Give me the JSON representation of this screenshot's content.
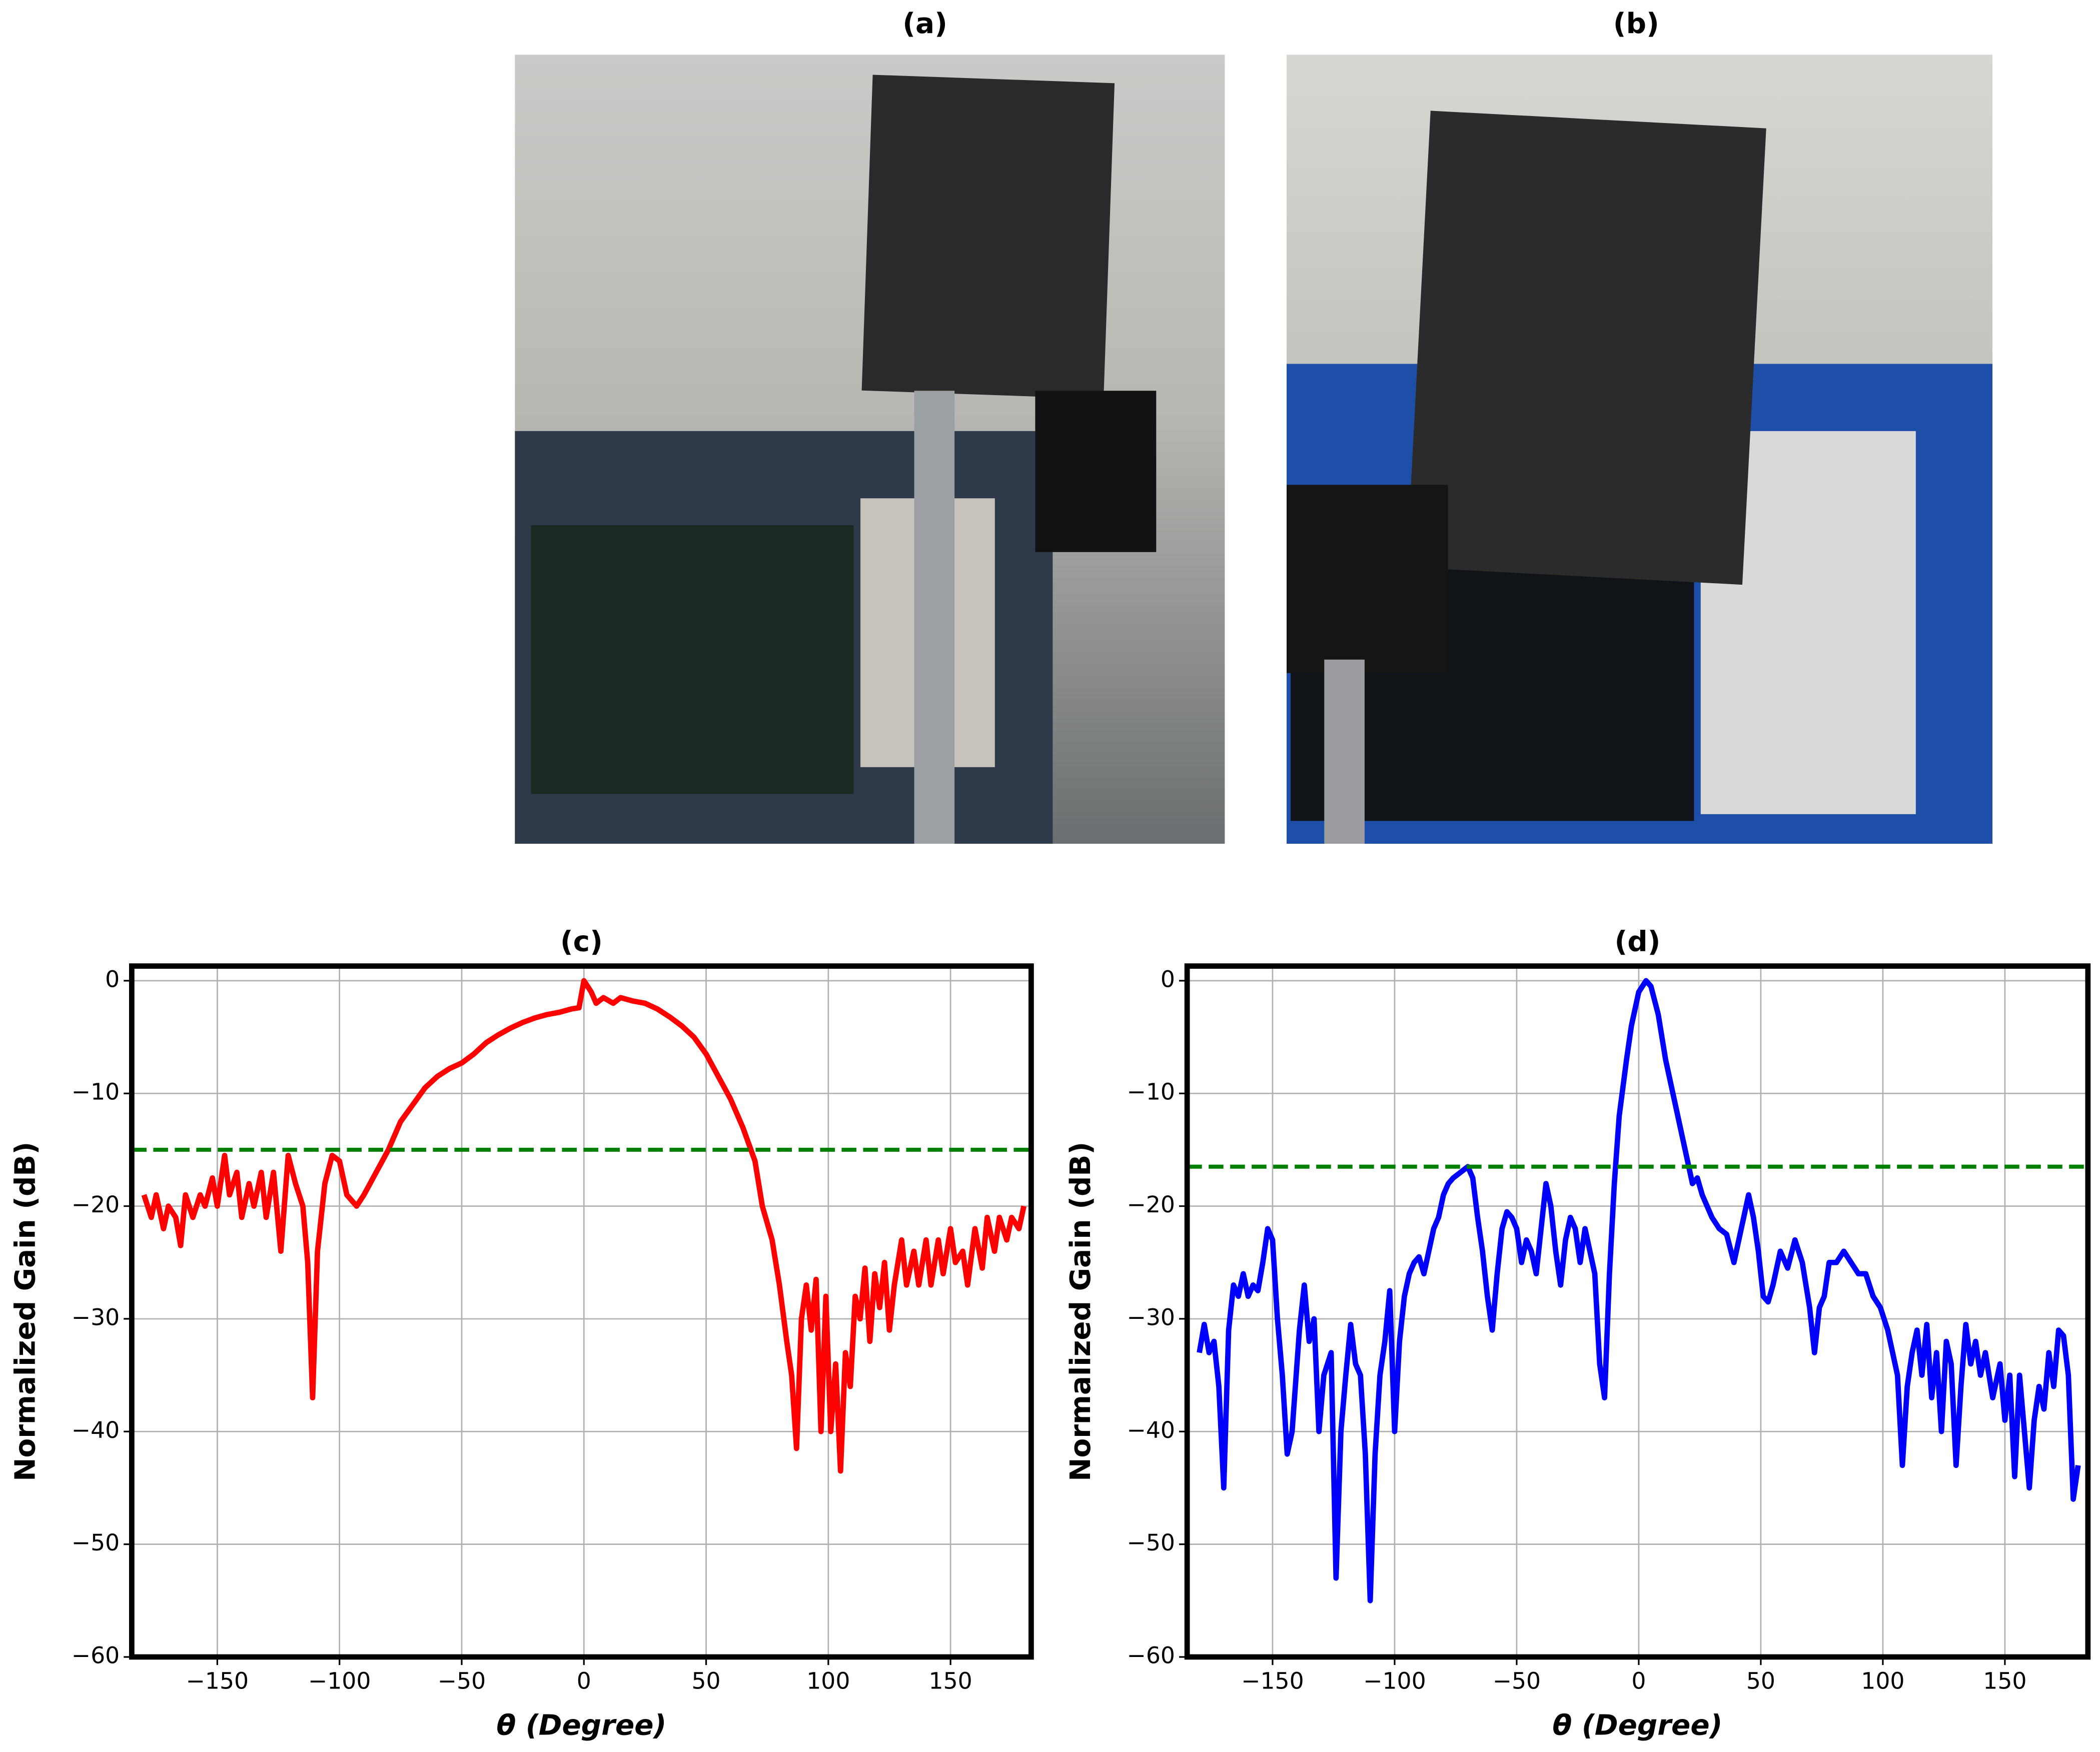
{
  "photos": [
    {
      "label": "(a)"
    },
    {
      "label": "(b)"
    }
  ],
  "chart_data": [
    {
      "type": "line",
      "title": "(c)",
      "xlabel": "θ (Degree)",
      "ylabel": "Normalized Gain (dB)",
      "xlim": [
        -185,
        183
      ],
      "ylim": [
        -60,
        1.3
      ],
      "xticks": [
        {
          "value": -150,
          "label": "−150"
        },
        {
          "value": -100,
          "label": "−100"
        },
        {
          "value": -50,
          "label": "−50"
        },
        0,
        50,
        100,
        150
      ],
      "yticks": [
        {
          "value": -60,
          "label": "−60"
        },
        {
          "value": -50,
          "label": "−50"
        },
        {
          "value": -40,
          "label": "−40"
        },
        {
          "value": -30,
          "label": "−30"
        },
        {
          "value": -20,
          "label": "−20"
        },
        {
          "value": -10,
          "label": "−10"
        },
        0
      ],
      "grid": true,
      "color": "#ff0000",
      "hline": {
        "value": -15,
        "color": "#008000"
      },
      "x": [
        -180,
        -177,
        -175,
        -172,
        -170,
        -167,
        -165,
        -163,
        -160,
        -157,
        -155,
        -152,
        -150,
        -147,
        -145,
        -142,
        -140,
        -137,
        -135,
        -132,
        -130,
        -127,
        -124,
        -121,
        -118,
        -115,
        -113,
        -111,
        -109,
        -106,
        -103,
        -100,
        -97,
        -93,
        -90,
        -85,
        -80,
        -75,
        -70,
        -65,
        -60,
        -55,
        -50,
        -45,
        -40,
        -35,
        -30,
        -25,
        -20,
        -15,
        -10,
        -5,
        -2,
        0,
        3,
        5,
        8,
        12,
        15,
        20,
        25,
        30,
        35,
        40,
        45,
        50,
        55,
        60,
        65,
        70,
        73,
        77,
        80,
        83,
        85,
        87,
        89,
        91,
        93,
        95,
        97,
        99,
        101,
        103,
        105,
        107,
        109,
        111,
        113,
        115,
        117,
        119,
        121,
        123,
        125,
        127,
        130,
        132,
        135,
        137,
        140,
        142,
        145,
        147,
        150,
        152,
        155,
        157,
        160,
        163,
        165,
        168,
        170,
        173,
        175,
        178,
        180
      ],
      "values": [
        -19,
        -21,
        -19,
        -22,
        -20,
        -21,
        -23.5,
        -19,
        -21,
        -19,
        -20,
        -17.5,
        -20,
        -15.5,
        -19,
        -17,
        -21,
        -18,
        -20,
        -17,
        -21,
        -17,
        -24,
        -15.5,
        -18,
        -20,
        -25,
        -37,
        -24,
        -18,
        -15.5,
        -16,
        -19,
        -20,
        -19,
        -17,
        -15,
        -12.5,
        -11,
        -9.5,
        -8.5,
        -7.8,
        -7.3,
        -6.5,
        -5.5,
        -4.8,
        -4.2,
        -3.7,
        -3.3,
        -3,
        -2.8,
        -2.5,
        -2.4,
        0,
        -1,
        -2,
        -1.5,
        -2,
        -1.5,
        -1.8,
        -2,
        -2.5,
        -3.2,
        -4,
        -5,
        -6.5,
        -8.5,
        -10.5,
        -13,
        -16,
        -20,
        -23,
        -27,
        -32,
        -35,
        -41.5,
        -30,
        -27,
        -31,
        -26.5,
        -40,
        -28,
        -40,
        -34,
        -43.5,
        -33,
        -36,
        -28,
        -30,
        -25.5,
        -32,
        -26,
        -29,
        -25,
        -31,
        -27,
        -23,
        -27,
        -24,
        -27,
        -23,
        -27,
        -23,
        -26,
        -22,
        -25,
        -24,
        -27,
        -22,
        -25.5,
        -21,
        -24,
        -21,
        -23,
        -21,
        -22,
        -20
      ]
    },
    {
      "type": "line",
      "title": "(d)",
      "xlabel": "θ (Degree)",
      "ylabel": "Normalized Gain (dB)",
      "xlim": [
        -185,
        184
      ],
      "ylim": [
        -60,
        1.3
      ],
      "xticks": [
        {
          "value": -150,
          "label": "−150"
        },
        {
          "value": -100,
          "label": "−100"
        },
        {
          "value": -50,
          "label": "−50"
        },
        0,
        50,
        100,
        150
      ],
      "yticks": [
        {
          "value": -60,
          "label": "−60"
        },
        {
          "value": -50,
          "label": "−50"
        },
        {
          "value": -40,
          "label": "−40"
        },
        {
          "value": -30,
          "label": "−30"
        },
        {
          "value": -20,
          "label": "−20"
        },
        {
          "value": -10,
          "label": "−10"
        },
        0
      ],
      "grid": true,
      "color": "#0000ff",
      "hline": {
        "value": -16.5,
        "color": "#008000"
      },
      "x": [
        -180,
        -178,
        -176,
        -174,
        -172,
        -170,
        -168,
        -166,
        -164,
        -162,
        -160,
        -158,
        -156,
        -154,
        -152,
        -150,
        -148,
        -146,
        -144,
        -142,
        -139,
        -137,
        -135,
        -133,
        -131,
        -129,
        -126,
        -124,
        -122,
        -120,
        -118,
        -116,
        -114,
        -112,
        -110,
        -108,
        -106,
        -104,
        -102,
        -100,
        -98,
        -96,
        -94,
        -92,
        -90,
        -88,
        -86,
        -84,
        -82,
        -80,
        -78,
        -76,
        -73,
        -70,
        -68,
        -66,
        -64,
        -62,
        -60,
        -58,
        -56,
        -54,
        -52,
        -50,
        -48,
        -46,
        -44,
        -42,
        -40,
        -38,
        -36,
        -34,
        -32,
        -30,
        -28,
        -26,
        -24,
        -22,
        -20,
        -18,
        -16,
        -14,
        -12,
        -10,
        -8,
        -5,
        -3,
        0,
        3,
        5,
        8,
        11,
        14,
        17,
        20,
        22,
        24,
        26,
        28,
        30,
        33,
        36,
        39,
        42,
        45,
        47,
        49,
        51,
        53,
        55,
        58,
        61,
        64,
        67,
        70,
        72,
        74,
        76,
        78,
        81,
        84,
        87,
        90,
        93,
        96,
        99,
        102,
        104,
        106,
        108,
        110,
        112,
        114,
        116,
        118,
        120,
        122,
        124,
        126,
        128,
        130,
        132,
        134,
        136,
        138,
        140,
        142,
        145,
        148,
        150,
        152,
        154,
        156,
        158,
        160,
        162,
        164,
        166,
        168,
        170,
        172,
        174,
        176,
        178,
        180
      ],
      "values": [
        -33,
        -30.5,
        -33,
        -32,
        -36,
        -45,
        -31,
        -27,
        -28,
        -26,
        -28,
        -27,
        -27.5,
        -25,
        -22,
        -23,
        -30,
        -35,
        -42,
        -40,
        -31,
        -27,
        -32,
        -30,
        -40,
        -35,
        -33,
        -53,
        -40,
        -35,
        -30.5,
        -34,
        -35,
        -42,
        -55,
        -42,
        -35,
        -32,
        -27.5,
        -40,
        -32,
        -28,
        -26,
        -25,
        -24.5,
        -26,
        -24,
        -22,
        -21,
        -19,
        -18,
        -17.5,
        -17,
        -16.5,
        -17.5,
        -21,
        -24,
        -28,
        -31,
        -26,
        -22,
        -20.5,
        -21,
        -22,
        -25,
        -23,
        -24,
        -26,
        -22,
        -18,
        -20,
        -24,
        -27,
        -23,
        -21,
        -22,
        -25,
        -22,
        -24,
        -26,
        -34,
        -37,
        -26,
        -18,
        -12,
        -7,
        -4,
        -1,
        0,
        -0.5,
        -3,
        -7,
        -10,
        -13,
        -16,
        -18,
        -17.5,
        -19,
        -20,
        -21,
        -22,
        -22.5,
        -25,
        -22,
        -19,
        -21,
        -24,
        -28,
        -28.5,
        -27,
        -24,
        -25.5,
        -23,
        -25,
        -29,
        -33,
        -29,
        -28,
        -25,
        -25,
        -24,
        -25,
        -26,
        -26,
        -28,
        -29,
        -31,
        -33,
        -35,
        -43,
        -36,
        -33,
        -31,
        -35,
        -30.5,
        -37,
        -33,
        -40,
        -32,
        -34,
        -43,
        -36,
        -30.5,
        -34,
        -32,
        -35,
        -33,
        -37,
        -34,
        -39,
        -35,
        -44,
        -35,
        -40,
        -45,
        -39,
        -36,
        -38,
        -33,
        -36,
        -31,
        -31.5,
        -35,
        -46,
        -43
      ]
    }
  ]
}
